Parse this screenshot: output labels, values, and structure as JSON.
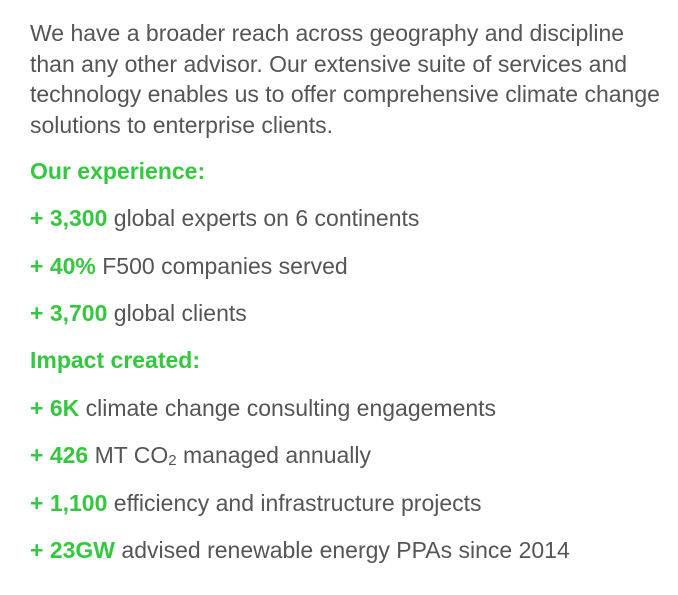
{
  "intro": "We have a broader reach across geography and discipline than any other advisor. Our extensive suite of services and technology enables us to offer comprehensive climate change solutions to enterprise clients.",
  "experience": {
    "heading": "Our experience:",
    "items": [
      {
        "highlight": "+ 3,300",
        "text": " global experts on 6 continents"
      },
      {
        "highlight": "+ 40%",
        "text": " F500 companies served"
      },
      {
        "highlight": "+ 3,700",
        "text": " global clients"
      }
    ]
  },
  "impact": {
    "heading": "Impact created:",
    "items": [
      {
        "highlight": "+ 6K",
        "text": " climate change consulting engagements"
      },
      {
        "highlight": "+ 426",
        "text_before": " MT CO",
        "subscript": "2",
        "text_after": " managed annually"
      },
      {
        "highlight": "+ 1,100",
        "text": " efficiency and infrastructure projects"
      },
      {
        "highlight": "+ 23GW",
        "text": " advised renewable energy PPAs since 2014"
      }
    ]
  },
  "colors": {
    "accent": "#35c83f",
    "text": "#555555"
  }
}
